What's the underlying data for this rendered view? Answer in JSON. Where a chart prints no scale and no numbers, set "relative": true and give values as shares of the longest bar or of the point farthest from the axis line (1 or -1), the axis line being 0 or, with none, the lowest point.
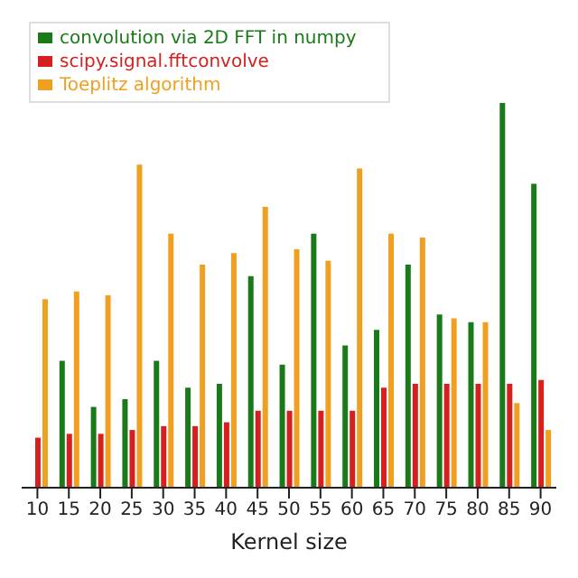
{
  "chart_data": {
    "type": "bar",
    "xlabel": "Kernel size",
    "relative": true,
    "legend": "top left",
    "categories": [
      "10",
      "15",
      "20",
      "25",
      "30",
      "35",
      "40",
      "45",
      "50",
      "55",
      "60",
      "65",
      "70",
      "75",
      "80",
      "85",
      "90"
    ],
    "series": [
      {
        "name": "convolution via 2D FFT in numpy",
        "color": "#1a7a1a",
        "values": [
          null,
          0.33,
          0.21,
          0.23,
          0.33,
          0.26,
          0.27,
          0.55,
          0.32,
          0.66,
          0.37,
          0.41,
          0.58,
          0.45,
          0.43,
          1,
          0.79
        ]
      },
      {
        "name": "scipy.signal.fftconvolve",
        "color": "#d62020",
        "values": [
          0.13,
          0.14,
          0.14,
          0.15,
          0.16,
          0.16,
          0.17,
          0.2,
          0.2,
          0.2,
          0.2,
          0.26,
          0.27,
          0.27,
          0.27,
          0.27,
          0.28
        ]
      },
      {
        "name": "Toeplitz  algorithm",
        "color": "#f0a020",
        "values": [
          0.49,
          0.51,
          0.5,
          0.84,
          0.66,
          0.58,
          0.61,
          0.73,
          0.62,
          0.59,
          0.83,
          0.66,
          0.65,
          0.44,
          0.43,
          0.22,
          0.15
        ]
      }
    ]
  }
}
